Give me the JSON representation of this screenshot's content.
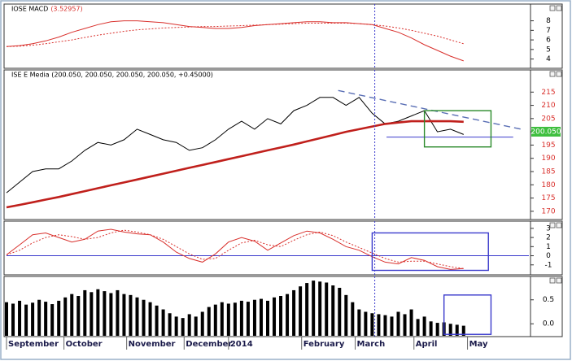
{
  "chart_data": [
    {
      "type": "line",
      "title": "IOSE MACD",
      "subtitle": "(3.52957)",
      "xlim": [
        0,
        40
      ],
      "ylim": [
        3.2,
        8.9
      ],
      "yticks": [
        8,
        7,
        6,
        5,
        4
      ],
      "tick_color": "#000000",
      "x": [
        0,
        1,
        2,
        3,
        4,
        5,
        6,
        7,
        8,
        9,
        10,
        11,
        12,
        13,
        14,
        15,
        16,
        17,
        18,
        19,
        20,
        21,
        22,
        23,
        24,
        25,
        26,
        27,
        28,
        29,
        30,
        31,
        32,
        33,
        34,
        35
      ],
      "series": [
        {
          "color": "#d9302c",
          "style": "solid",
          "width": 1,
          "values": [
            5.3,
            5.4,
            5.6,
            5.9,
            6.3,
            6.8,
            7.2,
            7.6,
            7.9,
            8.0,
            8.0,
            7.9,
            7.8,
            7.6,
            7.4,
            7.3,
            7.2,
            7.2,
            7.3,
            7.5,
            7.6,
            7.7,
            7.8,
            7.9,
            7.9,
            7.8,
            7.8,
            7.7,
            7.6,
            7.2,
            6.8,
            6.2,
            5.5,
            4.9,
            4.3,
            3.8
          ]
        },
        {
          "color": "#d9302c",
          "style": "dotted",
          "width": 1,
          "values": [
            5.3,
            5.35,
            5.45,
            5.6,
            5.8,
            6.0,
            6.25,
            6.5,
            6.7,
            6.9,
            7.05,
            7.15,
            7.25,
            7.3,
            7.35,
            7.4,
            7.4,
            7.45,
            7.5,
            7.55,
            7.6,
            7.65,
            7.7,
            7.75,
            7.75,
            7.75,
            7.75,
            7.7,
            7.6,
            7.45,
            7.25,
            7.0,
            6.7,
            6.4,
            6.0,
            5.6
          ]
        }
      ]
    },
    {
      "type": "line",
      "title": "ISE E Media (200.050, 200.050, 200.050, 200.050, +0.45000)",
      "xlim": [
        0,
        40
      ],
      "ylim": [
        167.5,
        220
      ],
      "yticks": [
        215,
        210,
        205,
        200,
        195,
        190,
        185,
        180,
        175,
        170
      ],
      "tick_color": "#d9302c",
      "x": [
        0,
        1,
        2,
        3,
        4,
        5,
        6,
        7,
        8,
        9,
        10,
        11,
        12,
        13,
        14,
        15,
        16,
        17,
        18,
        19,
        20,
        21,
        22,
        23,
        24,
        25,
        26,
        27,
        28,
        29,
        30,
        31,
        32,
        33,
        34,
        35
      ],
      "series": [
        {
          "color": "#000000",
          "style": "solid",
          "width": 1,
          "values": [
            177,
            181,
            185,
            186,
            186,
            189,
            193,
            196,
            195,
            197,
            201,
            199,
            197,
            196,
            193,
            194,
            197,
            201,
            204,
            201,
            205,
            203,
            208,
            210,
            213,
            213,
            210,
            213,
            207,
            203,
            204,
            206,
            208,
            200,
            201,
            199
          ]
        },
        {
          "color": "#c0201c",
          "style": "solid",
          "width": 2.6,
          "values": [
            171.5,
            172.4,
            173.4,
            174.4,
            175.4,
            176.5,
            177.6,
            178.7,
            179.8,
            180.9,
            182.0,
            183.1,
            184.2,
            185.3,
            186.4,
            187.5,
            188.6,
            189.7,
            190.8,
            191.9,
            193.0,
            194.1,
            195.2,
            196.4,
            197.6,
            198.8,
            200.0,
            201.0,
            202.0,
            203.0,
            203.5,
            204.0,
            204.0,
            204.0,
            204.0,
            203.8
          ]
        }
      ],
      "trendline": {
        "color": "#5a6fb5",
        "x": [
          25.4,
          39.4
        ],
        "y": [
          215.6,
          201.0
        ]
      },
      "box": {
        "color": "#2a8a2a",
        "x": [
          32.0,
          37.1
        ],
        "y": [
          194.3,
          208
        ]
      },
      "support": {
        "color": "#3a3acc",
        "x": [
          29.1,
          38.8
        ],
        "y": 198
      },
      "last_value": {
        "value": 200.05,
        "label": "200.050",
        "color": "#3fbf3f"
      }
    },
    {
      "type": "line",
      "title": null,
      "xlim": [
        0,
        40
      ],
      "ylim": [
        -2,
        3.7
      ],
      "yticks": [
        3,
        2,
        1,
        0,
        -1
      ],
      "tick_color": "#000000",
      "x": [
        0,
        1,
        2,
        3,
        4,
        5,
        6,
        7,
        8,
        9,
        10,
        11,
        12,
        13,
        14,
        15,
        16,
        17,
        18,
        19,
        20,
        21,
        22,
        23,
        24,
        25,
        26,
        27,
        28,
        29,
        30,
        31,
        32,
        33,
        34,
        35
      ],
      "series": [
        {
          "color": "#d9302c",
          "style": "solid",
          "width": 1,
          "values": [
            0.1,
            1.2,
            2.3,
            2.5,
            2.0,
            1.5,
            1.8,
            2.7,
            2.9,
            2.6,
            2.4,
            2.3,
            1.5,
            0.4,
            -0.3,
            -0.7,
            0.2,
            1.5,
            2.0,
            1.6,
            0.6,
            1.4,
            2.2,
            2.7,
            2.5,
            1.8,
            1.0,
            0.6,
            -0.1,
            -0.7,
            -0.9,
            -0.2,
            -0.5,
            -1.2,
            -1.5,
            -1.4
          ]
        },
        {
          "color": "#d9302c",
          "style": "dotted",
          "width": 1,
          "values": [
            0.1,
            0.6,
            1.4,
            2.0,
            2.3,
            2.1,
            1.8,
            2.0,
            2.5,
            2.8,
            2.6,
            2.3,
            1.8,
            1.0,
            0.2,
            -0.4,
            -0.3,
            0.6,
            1.4,
            1.7,
            1.2,
            1.0,
            1.7,
            2.3,
            2.6,
            2.2,
            1.5,
            0.9,
            0.3,
            -0.3,
            -0.7,
            -0.6,
            -0.6,
            -0.9,
            -1.2,
            -1.4
          ]
        }
      ],
      "hline": {
        "color": "#3a3acc",
        "y": 0
      },
      "box": {
        "color": "#3a3acc",
        "x": [
          28.0,
          36.9
        ],
        "y": [
          -1.6,
          2.5
        ]
      }
    },
    {
      "type": "bar",
      "title": null,
      "xlim": [
        0,
        40
      ],
      "ylim": [
        -0.25,
        0.97
      ],
      "yticks": [
        0.5,
        {
          "value": 0,
          "label": "0.0"
        }
      ],
      "tick_color": "#000000",
      "color": "#000000",
      "x": [
        0,
        0.5,
        1,
        1.5,
        2,
        2.5,
        3,
        3.5,
        4,
        4.5,
        5,
        5.5,
        6,
        6.5,
        7,
        7.5,
        8,
        8.5,
        9,
        9.5,
        10,
        10.5,
        11,
        11.5,
        12,
        12.5,
        13,
        13.5,
        14,
        14.5,
        15,
        15.5,
        16,
        16.5,
        17,
        17.5,
        18,
        18.5,
        19,
        19.5,
        20,
        20.5,
        21,
        21.5,
        22,
        22.5,
        23,
        23.5,
        24,
        24.5,
        25,
        25.5,
        26,
        26.5,
        27,
        27.5,
        28,
        28.5,
        29,
        29.5,
        30,
        30.5,
        31,
        31.5,
        32,
        32.5,
        33,
        33.5,
        34,
        34.5,
        35
      ],
      "values": [
        0.45,
        0.42,
        0.48,
        0.4,
        0.44,
        0.5,
        0.46,
        0.41,
        0.48,
        0.55,
        0.62,
        0.58,
        0.7,
        0.66,
        0.72,
        0.68,
        0.64,
        0.7,
        0.62,
        0.6,
        0.55,
        0.5,
        0.45,
        0.38,
        0.3,
        0.22,
        0.15,
        0.12,
        0.2,
        0.15,
        0.25,
        0.35,
        0.4,
        0.45,
        0.42,
        0.44,
        0.48,
        0.46,
        0.5,
        0.52,
        0.48,
        0.55,
        0.58,
        0.62,
        0.7,
        0.78,
        0.85,
        0.9,
        0.88,
        0.86,
        0.8,
        0.75,
        0.6,
        0.45,
        0.3,
        0.25,
        0.22,
        0.2,
        0.18,
        0.15,
        0.25,
        0.2,
        0.3,
        0.1,
        0.15,
        0.05,
        0.02,
        0.03,
        0.0,
        -0.02,
        -0.04
      ],
      "box": {
        "color": "#3a3acc",
        "x": [
          33.5,
          37.1
        ],
        "y": [
          -0.22,
          0.6
        ]
      },
      "xticks": [
        {
          "value": 0,
          "label": "September"
        },
        {
          "value": 4.4,
          "label": "October"
        },
        {
          "value": 9.2,
          "label": "November"
        },
        {
          "value": 13.6,
          "label": "December"
        },
        {
          "value": 17.0,
          "label": "2014"
        },
        {
          "value": 22.6,
          "label": "February"
        },
        {
          "value": 26.7,
          "label": "March"
        },
        {
          "value": 31.2,
          "label": "April"
        },
        {
          "value": 35.3,
          "label": "May"
        }
      ]
    }
  ],
  "cursor_x": 28.2
}
